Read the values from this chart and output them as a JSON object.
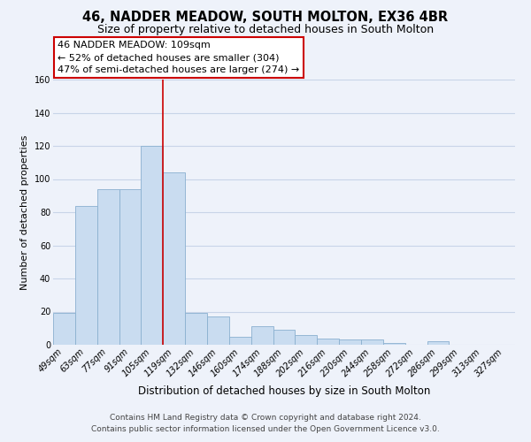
{
  "title": "46, NADDER MEADOW, SOUTH MOLTON, EX36 4BR",
  "subtitle": "Size of property relative to detached houses in South Molton",
  "xlabel": "Distribution of detached houses by size in South Molton",
  "ylabel": "Number of detached properties",
  "bar_labels": [
    "49sqm",
    "63sqm",
    "77sqm",
    "91sqm",
    "105sqm",
    "119sqm",
    "132sqm",
    "146sqm",
    "160sqm",
    "174sqm",
    "188sqm",
    "202sqm",
    "216sqm",
    "230sqm",
    "244sqm",
    "258sqm",
    "272sqm",
    "286sqm",
    "299sqm",
    "313sqm",
    "327sqm"
  ],
  "bar_values": [
    19,
    84,
    94,
    94,
    120,
    104,
    19,
    17,
    5,
    11,
    9,
    6,
    4,
    3,
    3,
    1,
    0,
    2,
    0,
    0,
    0
  ],
  "bar_color": "#c9dcf0",
  "bar_edge_color": "#8ab0d0",
  "vline_color": "#cc0000",
  "vline_pos": 4.5,
  "annotation_title": "46 NADDER MEADOW: 109sqm",
  "annotation_line1": "← 52% of detached houses are smaller (304)",
  "annotation_line2": "47% of semi-detached houses are larger (274) →",
  "annotation_box_facecolor": "white",
  "annotation_box_edgecolor": "#cc0000",
  "ylim": [
    0,
    160
  ],
  "yticks": [
    0,
    20,
    40,
    60,
    80,
    100,
    120,
    140,
    160
  ],
  "footer_line1": "Contains HM Land Registry data © Crown copyright and database right 2024.",
  "footer_line2": "Contains public sector information licensed under the Open Government Licence v3.0.",
  "bg_color": "#eef2fa",
  "plot_bg_color": "#eef2fa",
  "grid_color": "#c8d4e8",
  "title_fontsize": 10.5,
  "subtitle_fontsize": 9,
  "xlabel_fontsize": 8.5,
  "ylabel_fontsize": 8,
  "tick_fontsize": 7,
  "annotation_fontsize": 8,
  "footer_fontsize": 6.5
}
